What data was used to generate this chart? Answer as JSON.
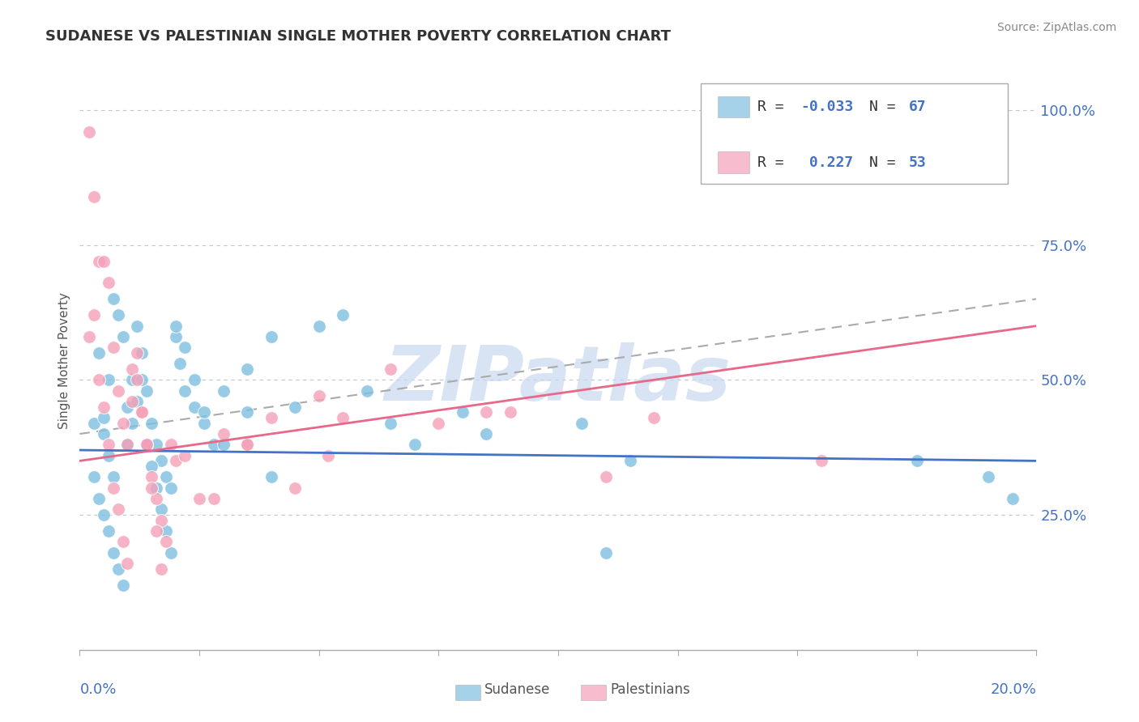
{
  "title": "SUDANESE VS PALESTINIAN SINGLE MOTHER POVERTY CORRELATION CHART",
  "source": "Source: ZipAtlas.com",
  "ylabel": "Single Mother Poverty",
  "xlim": [
    0.0,
    20.0
  ],
  "ylim": [
    0.0,
    107.0
  ],
  "ytick_values": [
    25.0,
    50.0,
    75.0,
    100.0
  ],
  "xtick_values": [
    0.0,
    2.5,
    5.0,
    7.5,
    10.0,
    12.5,
    15.0,
    17.5,
    20.0
  ],
  "sudanese_color": "#7fbfdf",
  "palestinian_color": "#f4a0b8",
  "trendline_sudanese_color": "#4472c4",
  "trendline_palestinian_color": "#e8688a",
  "watermark": "ZIPatlas",
  "watermark_color": "#c8d8ee",
  "background_color": "#ffffff",
  "grid_color": "#b8c8d8",
  "sudanese_R": -0.033,
  "sudanese_N": 67,
  "palestinian_R": 0.227,
  "palestinian_N": 53,
  "sudanese_x": [
    0.3,
    0.4,
    0.5,
    0.6,
    0.7,
    0.8,
    0.9,
    1.0,
    1.1,
    1.2,
    1.3,
    1.4,
    1.5,
    1.6,
    1.7,
    1.8,
    1.9,
    2.0,
    2.1,
    2.2,
    2.4,
    2.6,
    2.8,
    3.0,
    3.5,
    4.0,
    4.5,
    5.5,
    6.5,
    7.0,
    8.5,
    10.5,
    11.5,
    17.5,
    0.3,
    0.4,
    0.5,
    0.6,
    0.7,
    0.8,
    0.9,
    1.0,
    1.1,
    1.2,
    1.3,
    1.4,
    1.5,
    1.6,
    1.7,
    1.8,
    1.9,
    2.0,
    2.2,
    2.4,
    2.6,
    3.0,
    3.5,
    4.0,
    5.0,
    6.0,
    8.0,
    11.0,
    19.0,
    19.5,
    0.5,
    0.6,
    0.7
  ],
  "sudanese_y": [
    42,
    55,
    43,
    50,
    65,
    62,
    58,
    45,
    50,
    60,
    55,
    48,
    42,
    38,
    35,
    32,
    30,
    58,
    53,
    48,
    45,
    42,
    38,
    48,
    52,
    58,
    45,
    62,
    42,
    38,
    40,
    42,
    35,
    35,
    32,
    28,
    25,
    22,
    18,
    15,
    12,
    38,
    42,
    46,
    50,
    38,
    34,
    30,
    26,
    22,
    18,
    60,
    56,
    50,
    44,
    38,
    44,
    32,
    60,
    48,
    44,
    18,
    32,
    28,
    40,
    36,
    32
  ],
  "palestinian_x": [
    0.2,
    0.3,
    0.4,
    0.5,
    0.6,
    0.7,
    0.8,
    0.9,
    1.0,
    1.1,
    1.2,
    1.3,
    1.4,
    1.5,
    1.6,
    1.7,
    1.8,
    1.9,
    2.0,
    2.5,
    3.0,
    3.5,
    4.0,
    5.0,
    5.5,
    6.5,
    8.5,
    0.2,
    0.3,
    0.4,
    0.5,
    0.6,
    0.7,
    0.8,
    0.9,
    1.0,
    1.1,
    1.2,
    1.3,
    1.4,
    1.5,
    1.6,
    1.7,
    2.2,
    2.8,
    3.5,
    4.5,
    5.2,
    7.5,
    9.0,
    11.0,
    12.0,
    15.5
  ],
  "palestinian_y": [
    96,
    84,
    72,
    72,
    68,
    56,
    48,
    42,
    38,
    52,
    55,
    44,
    38,
    32,
    28,
    24,
    20,
    38,
    35,
    28,
    40,
    38,
    43,
    47,
    43,
    52,
    44,
    58,
    62,
    50,
    45,
    38,
    30,
    26,
    20,
    16,
    46,
    50,
    44,
    38,
    30,
    22,
    15,
    36,
    28,
    38,
    30,
    36,
    42,
    44,
    32,
    43,
    35
  ],
  "legend_R1": "R = -0.033",
  "legend_N1": "N = 67",
  "legend_R2": "R =  0.227",
  "legend_N2": "N = 53"
}
